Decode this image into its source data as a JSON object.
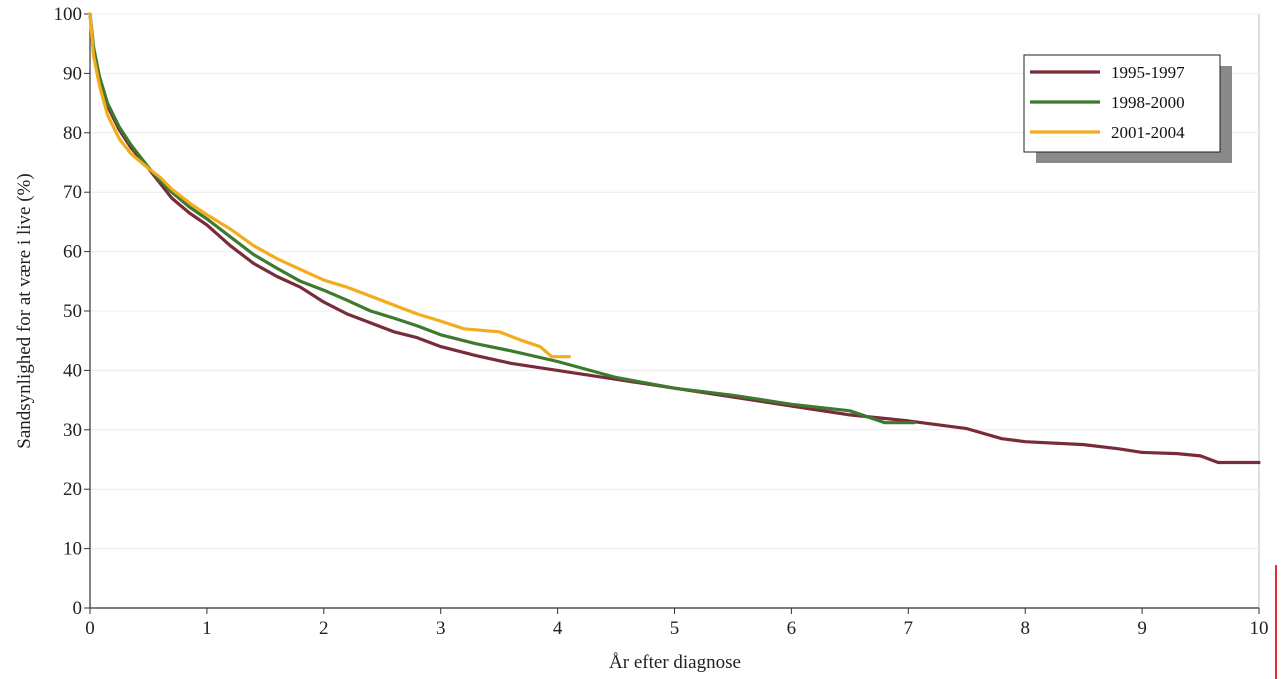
{
  "chart_data": {
    "type": "line",
    "xlabel": "År efter diagnose",
    "ylabel": "Sandsynlighed for at være i live (%)",
    "xlim": [
      0,
      10
    ],
    "ylim": [
      0,
      100
    ],
    "x_ticks": [
      "0",
      "1",
      "2",
      "3",
      "4",
      "5",
      "6",
      "7",
      "8",
      "9",
      "10"
    ],
    "y_ticks": [
      "0",
      "10",
      "20",
      "30",
      "40",
      "50",
      "60",
      "70",
      "80",
      "90",
      "100"
    ],
    "grid": true,
    "legend_position": "top-right",
    "series": [
      {
        "name": "1995-1997",
        "color": "#7a2b3a",
        "points": [
          [
            0,
            100
          ],
          [
            0.03,
            94
          ],
          [
            0.08,
            89
          ],
          [
            0.15,
            84.5
          ],
          [
            0.25,
            80.5
          ],
          [
            0.35,
            77.5
          ],
          [
            0.5,
            74
          ],
          [
            0.6,
            71.5
          ],
          [
            0.7,
            69
          ],
          [
            0.85,
            66.5
          ],
          [
            1.0,
            64.5
          ],
          [
            1.2,
            61
          ],
          [
            1.4,
            58
          ],
          [
            1.6,
            55.8
          ],
          [
            1.8,
            54
          ],
          [
            2.0,
            51.5
          ],
          [
            2.2,
            49.5
          ],
          [
            2.4,
            48
          ],
          [
            2.6,
            46.5
          ],
          [
            2.8,
            45.5
          ],
          [
            3.0,
            44
          ],
          [
            3.3,
            42.5
          ],
          [
            3.6,
            41.2
          ],
          [
            4.0,
            40
          ],
          [
            4.5,
            38.5
          ],
          [
            5.0,
            37
          ],
          [
            5.5,
            35.5
          ],
          [
            6.0,
            34
          ],
          [
            6.5,
            32.5
          ],
          [
            7.0,
            31.5
          ],
          [
            7.5,
            30.2
          ],
          [
            7.8,
            28.5
          ],
          [
            8.0,
            28
          ],
          [
            8.5,
            27.5
          ],
          [
            8.8,
            26.8
          ],
          [
            9.0,
            26.2
          ],
          [
            9.3,
            26
          ],
          [
            9.5,
            25.6
          ],
          [
            9.65,
            24.5
          ],
          [
            10.0,
            24.5
          ]
        ]
      },
      {
        "name": "1998-2000",
        "color": "#3d7a2e",
        "points": [
          [
            0,
            100
          ],
          [
            0.03,
            94.5
          ],
          [
            0.08,
            89.5
          ],
          [
            0.15,
            85
          ],
          [
            0.25,
            81
          ],
          [
            0.35,
            78
          ],
          [
            0.5,
            74.2
          ],
          [
            0.6,
            72
          ],
          [
            0.7,
            70
          ],
          [
            0.85,
            67.5
          ],
          [
            1.0,
            65.5
          ],
          [
            1.2,
            62.5
          ],
          [
            1.4,
            59.5
          ],
          [
            1.6,
            57.2
          ],
          [
            1.8,
            55
          ],
          [
            2.0,
            53.5
          ],
          [
            2.2,
            51.8
          ],
          [
            2.4,
            50
          ],
          [
            2.6,
            48.8
          ],
          [
            2.8,
            47.5
          ],
          [
            3.0,
            46
          ],
          [
            3.3,
            44.5
          ],
          [
            3.6,
            43.3
          ],
          [
            4.0,
            41.5
          ],
          [
            4.5,
            38.8
          ],
          [
            5.0,
            37
          ],
          [
            5.5,
            35.8
          ],
          [
            6.0,
            34.3
          ],
          [
            6.5,
            33.2
          ],
          [
            6.8,
            31.2
          ],
          [
            7.05,
            31.2
          ]
        ]
      },
      {
        "name": "2001-2004",
        "color": "#f2ac1c",
        "points": [
          [
            0,
            100
          ],
          [
            0.03,
            93
          ],
          [
            0.08,
            88
          ],
          [
            0.15,
            83
          ],
          [
            0.25,
            79
          ],
          [
            0.35,
            76.5
          ],
          [
            0.5,
            74
          ],
          [
            0.6,
            72.5
          ],
          [
            0.7,
            70.5
          ],
          [
            0.85,
            68.2
          ],
          [
            1.0,
            66.2
          ],
          [
            1.2,
            63.8
          ],
          [
            1.4,
            61
          ],
          [
            1.6,
            58.8
          ],
          [
            1.8,
            57
          ],
          [
            2.0,
            55.2
          ],
          [
            2.2,
            54
          ],
          [
            2.4,
            52.5
          ],
          [
            2.6,
            51
          ],
          [
            2.8,
            49.5
          ],
          [
            3.0,
            48.3
          ],
          [
            3.2,
            47
          ],
          [
            3.5,
            46.5
          ],
          [
            3.7,
            45
          ],
          [
            3.85,
            44
          ],
          [
            3.95,
            42.3
          ],
          [
            4.1,
            42.3
          ]
        ]
      }
    ]
  }
}
